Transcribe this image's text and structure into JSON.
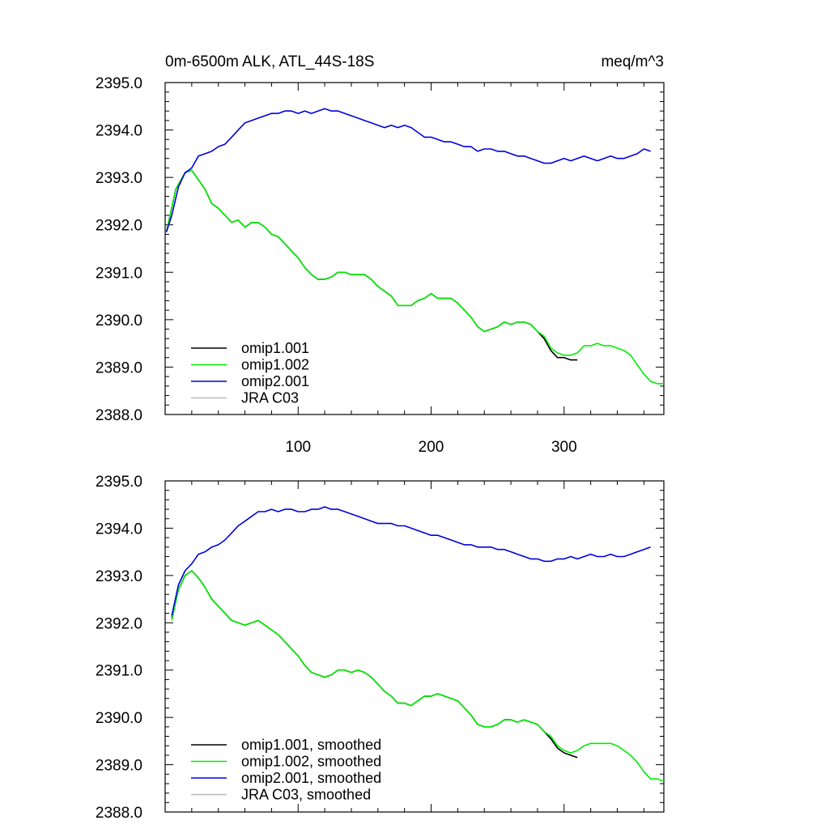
{
  "figure": {
    "title": "0m-6500m ALK, ATL_44S-18S",
    "units": "meq/m^3"
  },
  "chart_data": [
    {
      "type": "line",
      "panel": "top",
      "xlim": [
        0,
        375
      ],
      "ylim": [
        2388.0,
        2395.0
      ],
      "yticks": [
        "2388.0",
        "2389.0",
        "2390.0",
        "2391.0",
        "2392.0",
        "2393.0",
        "2394.0",
        "2395.0"
      ],
      "xticks": [
        "100",
        "200",
        "300"
      ],
      "legend_placement": "bottom-left",
      "grid": false,
      "series": [
        {
          "name": "omip1.001",
          "color": "#000000",
          "x": [
            1,
            8,
            15,
            20,
            25,
            30,
            35,
            40,
            45,
            50,
            55,
            60,
            65,
            70,
            75,
            80,
            85,
            90,
            95,
            100,
            105,
            110,
            115,
            120,
            125,
            130,
            135,
            140,
            145,
            150,
            155,
            160,
            165,
            170,
            175,
            180,
            185,
            190,
            195,
            200,
            205,
            210,
            215,
            220,
            225,
            230,
            235,
            240,
            245,
            250,
            255,
            260,
            265,
            270,
            275,
            280,
            285,
            290,
            295,
            300,
            305,
            310
          ],
          "y": [
            2391.85,
            2392.75,
            2393.1,
            2393.15,
            2392.95,
            2392.75,
            2392.45,
            2392.35,
            2392.2,
            2392.05,
            2392.1,
            2391.95,
            2392.05,
            2392.05,
            2391.95,
            2391.8,
            2391.75,
            2391.6,
            2391.45,
            2391.3,
            2391.1,
            2390.95,
            2390.85,
            2390.85,
            2390.9,
            2391.0,
            2391.0,
            2390.95,
            2390.95,
            2390.95,
            2390.85,
            2390.7,
            2390.6,
            2390.5,
            2390.3,
            2390.3,
            2390.3,
            2390.4,
            2390.45,
            2390.55,
            2390.45,
            2390.45,
            2390.45,
            2390.35,
            2390.2,
            2390.05,
            2389.85,
            2389.75,
            2389.8,
            2389.85,
            2389.95,
            2389.9,
            2389.95,
            2389.95,
            2389.9,
            2389.75,
            2389.6,
            2389.35,
            2389.2,
            2389.2,
            2389.15,
            2389.15
          ]
        },
        {
          "name": "omip1.002",
          "color": "#00ee00",
          "x": [
            1,
            8,
            15,
            20,
            25,
            30,
            35,
            40,
            45,
            50,
            55,
            60,
            65,
            70,
            75,
            80,
            85,
            90,
            95,
            100,
            105,
            110,
            115,
            120,
            125,
            130,
            135,
            140,
            145,
            150,
            155,
            160,
            165,
            170,
            175,
            180,
            185,
            190,
            195,
            200,
            205,
            210,
            215,
            220,
            225,
            230,
            235,
            240,
            245,
            250,
            255,
            260,
            265,
            270,
            275,
            280,
            285,
            290,
            295,
            300,
            305,
            310,
            315,
            320,
            325,
            330,
            335,
            340,
            345,
            350,
            355,
            360,
            365,
            370,
            375
          ],
          "y": [
            2391.85,
            2392.75,
            2393.1,
            2393.15,
            2392.95,
            2392.75,
            2392.45,
            2392.35,
            2392.2,
            2392.05,
            2392.1,
            2391.95,
            2392.05,
            2392.05,
            2391.95,
            2391.8,
            2391.75,
            2391.6,
            2391.45,
            2391.3,
            2391.1,
            2390.95,
            2390.85,
            2390.85,
            2390.9,
            2391.0,
            2391.0,
            2390.95,
            2390.95,
            2390.95,
            2390.85,
            2390.7,
            2390.6,
            2390.5,
            2390.3,
            2390.3,
            2390.3,
            2390.4,
            2390.45,
            2390.55,
            2390.45,
            2390.45,
            2390.45,
            2390.35,
            2390.2,
            2390.05,
            2389.85,
            2389.75,
            2389.8,
            2389.85,
            2389.95,
            2389.9,
            2389.95,
            2389.95,
            2389.9,
            2389.75,
            2389.65,
            2389.4,
            2389.3,
            2389.25,
            2389.25,
            2389.3,
            2389.45,
            2389.45,
            2389.5,
            2389.45,
            2389.45,
            2389.4,
            2389.35,
            2389.25,
            2389.05,
            2388.85,
            2388.7,
            2388.65,
            2388.65
          ]
        },
        {
          "name": "omip2.001",
          "color": "#0000dd",
          "x": [
            1,
            5,
            10,
            15,
            20,
            25,
            30,
            35,
            40,
            45,
            50,
            55,
            60,
            65,
            70,
            75,
            80,
            85,
            90,
            95,
            100,
            105,
            110,
            115,
            120,
            125,
            130,
            135,
            140,
            145,
            150,
            155,
            160,
            165,
            170,
            175,
            180,
            185,
            190,
            195,
            200,
            205,
            210,
            215,
            220,
            225,
            230,
            235,
            240,
            245,
            250,
            255,
            260,
            265,
            270,
            275,
            280,
            285,
            290,
            295,
            300,
            305,
            310,
            315,
            320,
            325,
            330,
            335,
            340,
            345,
            350,
            355,
            360,
            365
          ],
          "y": [
            2391.85,
            2392.2,
            2392.8,
            2393.1,
            2393.2,
            2393.45,
            2393.5,
            2393.55,
            2393.65,
            2393.7,
            2393.85,
            2394.0,
            2394.15,
            2394.2,
            2394.25,
            2394.3,
            2394.35,
            2394.35,
            2394.4,
            2394.4,
            2394.35,
            2394.4,
            2394.35,
            2394.4,
            2394.45,
            2394.4,
            2394.4,
            2394.35,
            2394.3,
            2394.25,
            2394.2,
            2394.15,
            2394.1,
            2394.05,
            2394.1,
            2394.05,
            2394.1,
            2394.05,
            2393.95,
            2393.85,
            2393.85,
            2393.8,
            2393.75,
            2393.75,
            2393.7,
            2393.65,
            2393.65,
            2393.55,
            2393.6,
            2393.6,
            2393.55,
            2393.55,
            2393.5,
            2393.45,
            2393.45,
            2393.4,
            2393.35,
            2393.3,
            2393.3,
            2393.35,
            2393.4,
            2393.35,
            2393.4,
            2393.45,
            2393.4,
            2393.35,
            2393.4,
            2393.45,
            2393.4,
            2393.4,
            2393.45,
            2393.5,
            2393.6,
            2393.55
          ]
        },
        {
          "name": "JRA C03",
          "color": "#bbbbbb",
          "x": [],
          "y": []
        }
      ]
    },
    {
      "type": "line",
      "panel": "bottom",
      "xlim": [
        0,
        375
      ],
      "ylim": [
        2388.0,
        2395.0
      ],
      "yticks": [
        "2388.0",
        "2389.0",
        "2390.0",
        "2391.0",
        "2392.0",
        "2393.0",
        "2394.0",
        "2395.0"
      ],
      "xticks": [],
      "legend_placement": "bottom-left",
      "grid": false,
      "series": [
        {
          "name": "omip1.001, smoothed",
          "color": "#000000",
          "x": [
            5,
            10,
            15,
            20,
            25,
            30,
            35,
            40,
            45,
            50,
            55,
            60,
            65,
            70,
            75,
            80,
            85,
            90,
            95,
            100,
            105,
            110,
            115,
            120,
            125,
            130,
            135,
            140,
            145,
            150,
            155,
            160,
            165,
            170,
            175,
            180,
            185,
            190,
            195,
            200,
            205,
            210,
            215,
            220,
            225,
            230,
            235,
            240,
            245,
            250,
            255,
            260,
            265,
            270,
            275,
            280,
            285,
            290,
            295,
            300,
            305,
            310
          ],
          "y": [
            2392.1,
            2392.7,
            2393.0,
            2393.1,
            2392.95,
            2392.75,
            2392.5,
            2392.35,
            2392.2,
            2392.05,
            2392.0,
            2391.95,
            2392.0,
            2392.05,
            2391.95,
            2391.85,
            2391.75,
            2391.6,
            2391.45,
            2391.3,
            2391.1,
            2390.95,
            2390.9,
            2390.85,
            2390.9,
            2391.0,
            2391.0,
            2390.95,
            2391.0,
            2390.95,
            2390.85,
            2390.7,
            2390.55,
            2390.45,
            2390.3,
            2390.3,
            2390.25,
            2390.35,
            2390.45,
            2390.45,
            2390.5,
            2390.45,
            2390.4,
            2390.35,
            2390.2,
            2390.05,
            2389.85,
            2389.8,
            2389.8,
            2389.85,
            2389.95,
            2389.95,
            2389.9,
            2389.95,
            2389.9,
            2389.85,
            2389.7,
            2389.55,
            2389.35,
            2389.25,
            2389.2,
            2389.15
          ]
        },
        {
          "name": "omip1.002, smoothed",
          "color": "#00ee00",
          "x": [
            5,
            10,
            15,
            20,
            25,
            30,
            35,
            40,
            45,
            50,
            55,
            60,
            65,
            70,
            75,
            80,
            85,
            90,
            95,
            100,
            105,
            110,
            115,
            120,
            125,
            130,
            135,
            140,
            145,
            150,
            155,
            160,
            165,
            170,
            175,
            180,
            185,
            190,
            195,
            200,
            205,
            210,
            215,
            220,
            225,
            230,
            235,
            240,
            245,
            250,
            255,
            260,
            265,
            270,
            275,
            280,
            285,
            290,
            295,
            300,
            305,
            310,
            315,
            320,
            325,
            330,
            335,
            340,
            345,
            350,
            355,
            360,
            365,
            370,
            375
          ],
          "y": [
            2392.05,
            2392.7,
            2393.0,
            2393.1,
            2392.95,
            2392.75,
            2392.5,
            2392.35,
            2392.2,
            2392.05,
            2392.0,
            2391.95,
            2392.0,
            2392.05,
            2391.95,
            2391.85,
            2391.75,
            2391.6,
            2391.45,
            2391.3,
            2391.1,
            2390.95,
            2390.9,
            2390.85,
            2390.9,
            2391.0,
            2391.0,
            2390.95,
            2391.0,
            2390.95,
            2390.85,
            2390.7,
            2390.55,
            2390.45,
            2390.3,
            2390.3,
            2390.25,
            2390.35,
            2390.45,
            2390.45,
            2390.5,
            2390.45,
            2390.4,
            2390.35,
            2390.2,
            2390.05,
            2389.85,
            2389.8,
            2389.8,
            2389.85,
            2389.95,
            2389.95,
            2389.9,
            2389.95,
            2389.9,
            2389.85,
            2389.7,
            2389.6,
            2389.4,
            2389.3,
            2389.25,
            2389.3,
            2389.4,
            2389.45,
            2389.45,
            2389.45,
            2389.45,
            2389.4,
            2389.3,
            2389.2,
            2389.05,
            2388.85,
            2388.7,
            2388.7,
            2388.65
          ]
        },
        {
          "name": "omip2.001, smoothed",
          "color": "#0000dd",
          "x": [
            5,
            10,
            15,
            20,
            25,
            30,
            35,
            40,
            45,
            50,
            55,
            60,
            65,
            70,
            75,
            80,
            85,
            90,
            95,
            100,
            105,
            110,
            115,
            120,
            125,
            130,
            135,
            140,
            145,
            150,
            155,
            160,
            165,
            170,
            175,
            180,
            185,
            190,
            195,
            200,
            205,
            210,
            215,
            220,
            225,
            230,
            235,
            240,
            245,
            250,
            255,
            260,
            265,
            270,
            275,
            280,
            285,
            290,
            295,
            300,
            305,
            310,
            315,
            320,
            325,
            330,
            335,
            340,
            345,
            350,
            355,
            360,
            365
          ],
          "y": [
            2392.15,
            2392.8,
            2393.1,
            2393.25,
            2393.45,
            2393.5,
            2393.6,
            2393.65,
            2393.75,
            2393.9,
            2394.05,
            2394.15,
            2394.25,
            2394.35,
            2394.35,
            2394.4,
            2394.35,
            2394.4,
            2394.4,
            2394.35,
            2394.35,
            2394.4,
            2394.4,
            2394.45,
            2394.4,
            2394.4,
            2394.35,
            2394.3,
            2394.25,
            2394.2,
            2394.15,
            2394.1,
            2394.1,
            2394.1,
            2394.05,
            2394.05,
            2394.0,
            2393.95,
            2393.9,
            2393.85,
            2393.85,
            2393.8,
            2393.75,
            2393.7,
            2393.65,
            2393.65,
            2393.6,
            2393.6,
            2393.6,
            2393.55,
            2393.55,
            2393.5,
            2393.45,
            2393.4,
            2393.35,
            2393.35,
            2393.3,
            2393.3,
            2393.35,
            2393.35,
            2393.4,
            2393.35,
            2393.4,
            2393.45,
            2393.4,
            2393.4,
            2393.45,
            2393.4,
            2393.4,
            2393.45,
            2393.5,
            2393.55,
            2393.6
          ]
        },
        {
          "name": "JRA C03, smoothed",
          "color": "#bbbbbb",
          "x": [],
          "y": []
        }
      ]
    }
  ]
}
